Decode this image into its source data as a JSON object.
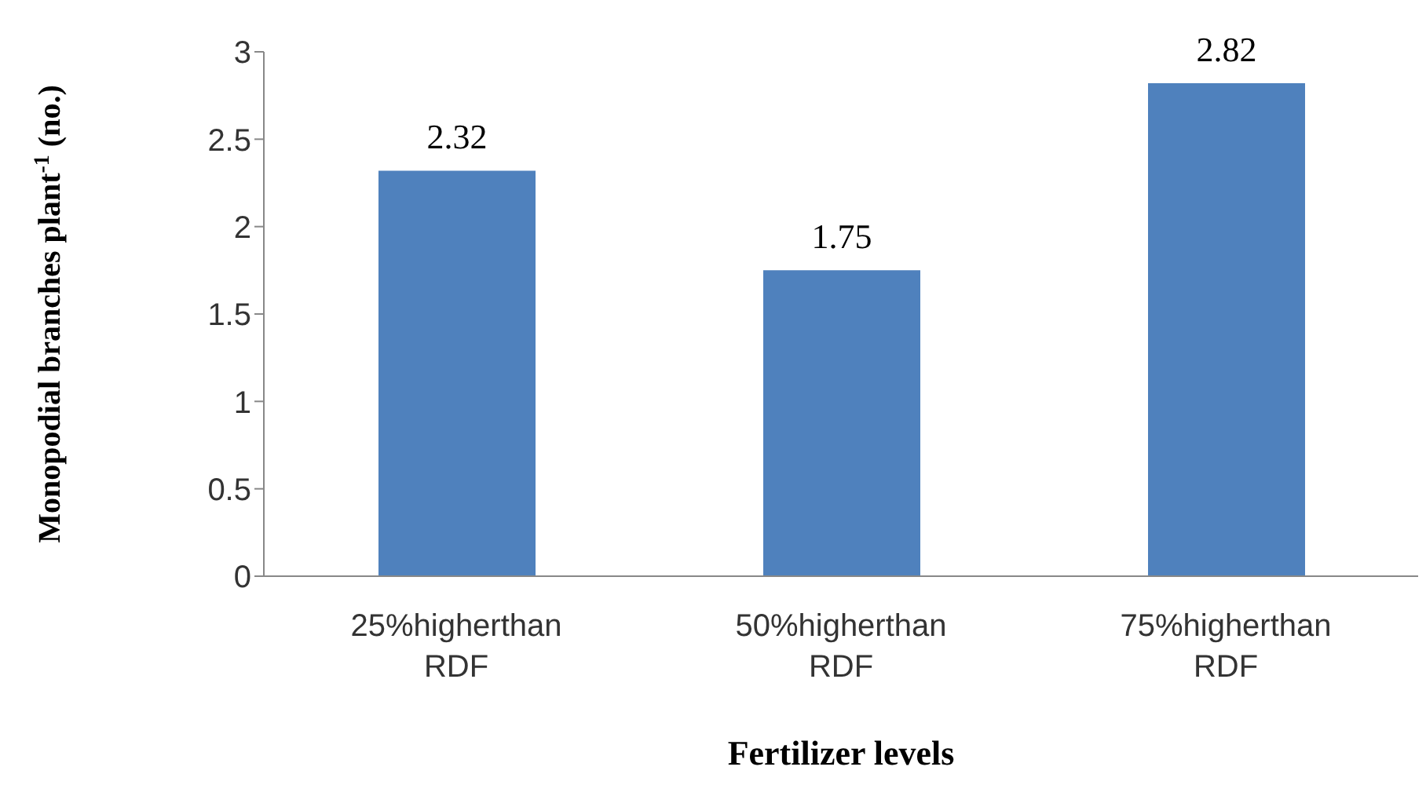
{
  "chart_data": {
    "type": "bar",
    "xlabel": "Fertilizer levels",
    "ylabel": "Monopodial branches plant$^{-1}$ (no.)",
    "categories": [
      "25%higherthan RDF",
      "50%higherthan RDF",
      "75%higherthan RDF"
    ],
    "values": [
      2.32,
      1.75,
      2.82
    ],
    "color": "#4f81bd",
    "ylim": [
      0,
      3
    ],
    "yticks": [
      0,
      0.5,
      1,
      1.5,
      2,
      2.5,
      3
    ],
    "grid": false,
    "data_labels": true
  }
}
